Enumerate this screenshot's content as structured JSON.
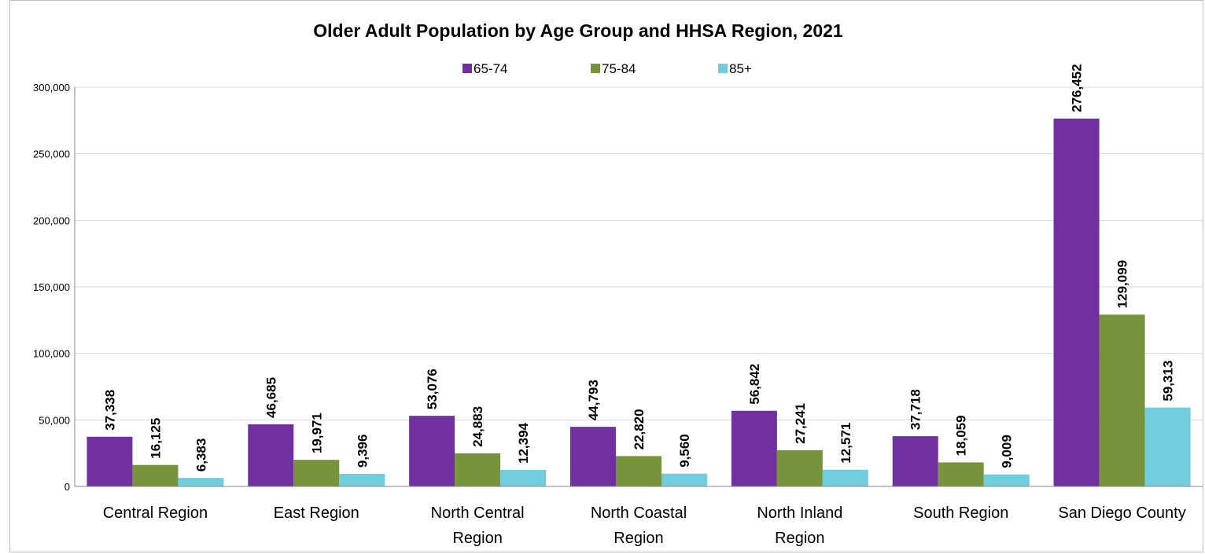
{
  "chart_data": {
    "type": "bar",
    "title": "Older Adult Population by Age Group and HHSA Region, 2021",
    "categories": [
      [
        "Central Region"
      ],
      [
        "East Region"
      ],
      [
        "North Central",
        "Region"
      ],
      [
        "North Coastal",
        "Region"
      ],
      [
        "North Inland",
        "Region"
      ],
      [
        "South Region"
      ],
      [
        "San Diego County"
      ]
    ],
    "series": [
      {
        "name": "65-74",
        "color": "#7030a0",
        "values": [
          37338,
          46685,
          53076,
          44793,
          56842,
          37718,
          276452
        ]
      },
      {
        "name": "75-84",
        "color": "#77933c",
        "values": [
          16125,
          19971,
          24883,
          22820,
          27241,
          18059,
          129099
        ]
      },
      {
        "name": "85+",
        "color": "#70cddd",
        "values": [
          6383,
          9396,
          12394,
          9560,
          12571,
          9009,
          59313
        ]
      }
    ],
    "ylim": [
      0,
      300000
    ],
    "yticks": [
      0,
      50000,
      100000,
      150000,
      200000,
      250000,
      300000
    ],
    "grid": true,
    "legend_position": "top",
    "data_labels": true
  }
}
